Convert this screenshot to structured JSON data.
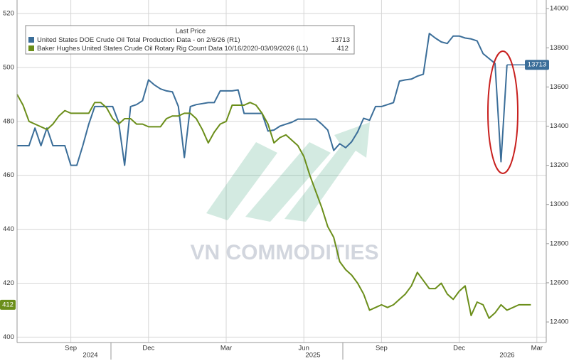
{
  "chart_data": {
    "type": "line",
    "legend_title": "Last Price",
    "watermark": "VN COMMODITIES",
    "categories": [
      null,
      null,
      null,
      null,
      null,
      null,
      null,
      null,
      null,
      "Sep",
      null,
      null,
      null,
      null,
      null,
      null,
      null,
      null,
      null,
      null,
      null,
      null,
      "Dec",
      null,
      null,
      null,
      null,
      null,
      null,
      null,
      null,
      null,
      null,
      null,
      null,
      "Mar",
      null,
      null,
      null,
      null,
      null,
      null,
      null,
      null,
      null,
      null,
      null,
      null,
      "Jun",
      null,
      null,
      null,
      null,
      null,
      null,
      null,
      null,
      null,
      null,
      null,
      null,
      "Sep",
      null,
      null,
      null,
      null,
      null,
      null,
      null,
      null,
      null,
      null,
      null,
      null,
      "Dec",
      null,
      null,
      null,
      null,
      null,
      null,
      null,
      null,
      null,
      null,
      null,
      null,
      "Mar",
      null
    ],
    "years": [
      "2024",
      "2025",
      "2026"
    ],
    "series": [
      {
        "name": "United States DOE Crude Oil Total Production Data -  on 2/6/26  (R1)",
        "color": "#3b6e99",
        "axis": "y2",
        "values": [
          13300,
          13300,
          13300,
          13390,
          13300,
          13390,
          13300,
          13300,
          13300,
          13200,
          13200,
          13300,
          13410,
          13500,
          13500,
          13500,
          13500,
          13420,
          13200,
          13500,
          13510,
          13530,
          13636,
          13610,
          13590,
          13580,
          13575,
          13500,
          13240,
          13500,
          13510,
          13515,
          13520,
          13520,
          13580,
          13580,
          13580,
          13585,
          13465,
          13465,
          13465,
          13465,
          13375,
          13380,
          13400,
          13410,
          13420,
          13436,
          13436,
          13436,
          13436,
          13410,
          13380,
          13276,
          13310,
          13290,
          13320,
          13370,
          13440,
          13430,
          13500,
          13500,
          13510,
          13520,
          13630,
          13636,
          13640,
          13655,
          13665,
          13873,
          13850,
          13830,
          13822,
          13860,
          13860,
          13850,
          13845,
          13835,
          13770,
          13745,
          13720,
          13218,
          13713,
          null,
          null,
          null,
          null,
          null,
          null
        ]
      },
      {
        "name": "Baker Hughes United States Crude Oil Rotary Rig Count Data 10/16/2020-03/09/2026  (L1)",
        "color": "#6b8e1a",
        "axis": "y",
        "values": [
          490,
          486,
          480,
          479,
          478,
          477,
          479,
          482,
          484,
          483,
          483,
          483,
          483,
          487,
          487,
          485,
          481,
          479,
          481,
          481,
          479,
          479,
          478,
          478,
          478,
          481,
          482,
          482,
          483,
          483,
          481,
          477,
          472,
          476,
          479,
          480,
          486,
          486,
          486,
          487,
          486,
          483,
          479,
          472,
          474,
          475,
          473,
          471,
          467,
          460,
          454,
          448,
          441,
          437,
          428,
          425,
          423,
          420,
          416,
          410,
          411,
          412,
          411,
          412,
          414,
          416,
          419,
          424,
          421,
          418,
          418,
          420,
          416,
          414,
          417,
          419,
          408,
          413,
          412,
          407,
          409,
          412,
          410,
          411,
          412,
          412,
          412,
          null,
          null
        ]
      }
    ],
    "ylim": [
      398,
      525
    ],
    "yticks": [
      400,
      420,
      440,
      460,
      480,
      500,
      520
    ],
    "y2lim": [
      12295,
      14044
    ],
    "y2ticks": [
      12400,
      12600,
      12800,
      13000,
      13200,
      13400,
      13600,
      13800,
      14000
    ],
    "grid": true
  }
}
